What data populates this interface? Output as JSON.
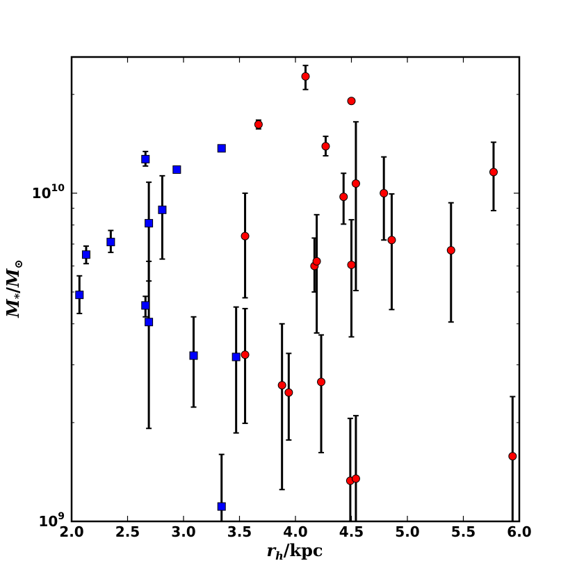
{
  "chart_data": {
    "type": "scatter",
    "title": "",
    "xlabel_parts": {
      "var": "r",
      "sub": "h",
      "unit": "/kpc"
    },
    "ylabel_parts": {
      "var": "M",
      "sub": "*",
      "sep": "/",
      "var2": "M",
      "sub2": "⊙"
    },
    "xlim": [
      2.0,
      6.0
    ],
    "ylim": [
      1000000000,
      26000000000
    ],
    "yscale": "log",
    "grid": false,
    "x_ticks": [
      2.0,
      2.5,
      3.0,
      3.5,
      4.0,
      4.5,
      5.0,
      5.5,
      6.0
    ],
    "x_tick_labels": [
      "2.0",
      "2.5",
      "3.0",
      "3.5",
      "4.0",
      "4.5",
      "5.0",
      "5.5",
      "6.0"
    ],
    "y_major_ticks": [
      {
        "value": 1000000000,
        "base": "10",
        "exp": "9"
      },
      {
        "value": 10000000000,
        "base": "10",
        "exp": "10"
      }
    ],
    "y_minor_ticks": [
      2000000000,
      3000000000,
      4000000000,
      5000000000,
      6000000000,
      7000000000,
      8000000000,
      9000000000,
      20000000000
    ],
    "series": [
      {
        "marker": "square",
        "color": "#0000ff",
        "points": [
          {
            "x": 2.07,
            "y": 4900000000.0,
            "ylo": 4300000000.0,
            "yhi": 5600000000.0
          },
          {
            "x": 2.13,
            "y": 6500000000.0,
            "ylo": 6100000000.0,
            "yhi": 6900000000.0
          },
          {
            "x": 2.35,
            "y": 7100000000.0,
            "ylo": 6600000000.0,
            "yhi": 7700000000.0
          },
          {
            "x": 2.66,
            "y": 12700000000.0,
            "ylo": 12100000000.0,
            "yhi": 13400000000.0
          },
          {
            "x": 2.66,
            "y": 4550000000.0,
            "ylo": 4200000000.0,
            "yhi": 4850000000.0
          },
          {
            "x": 2.69,
            "y": 8100000000.0,
            "ylo": 5400000000.0,
            "yhi": 10800000000.0
          },
          {
            "x": 2.69,
            "y": 4050000000.0,
            "ylo": 1920000000.0,
            "yhi": 6200000000.0
          },
          {
            "x": 2.81,
            "y": 8900000000.0,
            "ylo": 6300000000.0,
            "yhi": 11300000000.0
          },
          {
            "x": 2.94,
            "y": 11800000000.0,
            "ylo": 11600000000.0,
            "yhi": 12000000000.0
          },
          {
            "x": 3.09,
            "y": 3200000000.0,
            "ylo": 2230000000.0,
            "yhi": 4200000000.0
          },
          {
            "x": 3.34,
            "y": 13700000000.0,
            "ylo": 13400000000.0,
            "yhi": 14000000000.0
          },
          {
            "x": 3.34,
            "y": 1110000000.0,
            "ylo": 1000000000.0,
            "yhi": 1600000000.0
          },
          {
            "x": 3.47,
            "y": 3170000000.0,
            "ylo": 1860000000.0,
            "yhi": 4500000000.0
          }
        ]
      },
      {
        "marker": "circle",
        "color": "#ff0000",
        "points": [
          {
            "x": 3.55,
            "y": 7400000000.0,
            "ylo": 4800000000.0,
            "yhi": 10000000000.0
          },
          {
            "x": 3.55,
            "y": 3220000000.0,
            "ylo": 1990000000.0,
            "yhi": 4450000000.0
          },
          {
            "x": 3.67,
            "y": 16200000000.0,
            "ylo": 15700000000.0,
            "yhi": 16700000000.0
          },
          {
            "x": 3.88,
            "y": 2600000000.0,
            "ylo": 1250000000.0,
            "yhi": 4000000000.0
          },
          {
            "x": 3.94,
            "y": 2470000000.0,
            "ylo": 1770000000.0,
            "yhi": 3250000000.0
          },
          {
            "x": 4.09,
            "y": 22700000000.0,
            "ylo": 20700000000.0,
            "yhi": 24500000000.0
          },
          {
            "x": 4.17,
            "y": 6000000000.0,
            "ylo": 5000000000.0,
            "yhi": 7300000000.0
          },
          {
            "x": 4.19,
            "y": 6200000000.0,
            "ylo": 3750000000.0,
            "yhi": 8600000000.0
          },
          {
            "x": 4.23,
            "y": 2660000000.0,
            "ylo": 1620000000.0,
            "yhi": 3700000000.0
          },
          {
            "x": 4.27,
            "y": 13900000000.0,
            "ylo": 13000000000.0,
            "yhi": 14900000000.0
          },
          {
            "x": 4.43,
            "y": 9750000000.0,
            "ylo": 8050000000.0,
            "yhi": 11500000000.0
          },
          {
            "x": 4.5,
            "y": 6050000000.0,
            "ylo": 3650000000.0,
            "yhi": 8300000000.0
          },
          {
            "x": 4.5,
            "y": 19100000000.0,
            "ylo": 19100000000.0,
            "yhi": 19100000000.0
          },
          {
            "x": 4.49,
            "y": 1330000000.0,
            "ylo": 1000000000.0,
            "yhi": 2060000000.0
          },
          {
            "x": 4.54,
            "y": 1350000000.0,
            "ylo": 1000000000.0,
            "yhi": 2100000000.0
          },
          {
            "x": 4.54,
            "y": 10700000000.0,
            "ylo": 5050000000.0,
            "yhi": 16500000000.0
          },
          {
            "x": 4.79,
            "y": 10000000000.0,
            "ylo": 7200000000.0,
            "yhi": 12900000000.0
          },
          {
            "x": 4.86,
            "y": 7200000000.0,
            "ylo": 4420000000.0,
            "yhi": 9950000000.0
          },
          {
            "x": 5.39,
            "y": 6700000000.0,
            "ylo": 4050000000.0,
            "yhi": 9350000000.0
          },
          {
            "x": 5.77,
            "y": 11600000000.0,
            "ylo": 8850000000.0,
            "yhi": 14300000000.0
          },
          {
            "x": 5.94,
            "y": 1580000000.0,
            "ylo": 1000000000.0,
            "yhi": 2400000000.0
          }
        ]
      }
    ]
  }
}
